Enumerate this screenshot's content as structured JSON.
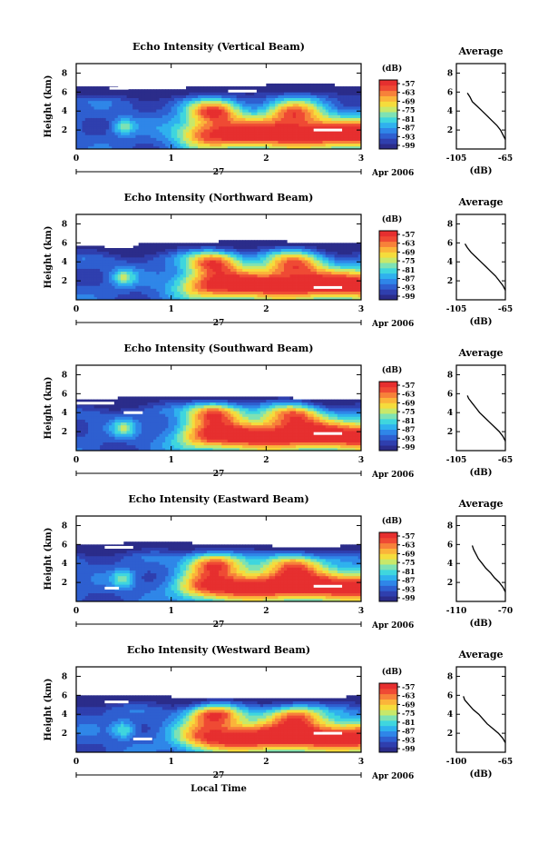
{
  "figure": {
    "xlabel": "Local Time",
    "date_day": "27",
    "date_month": "Apr 2006",
    "colorbar_unit": "(dB)",
    "avg_title": "Average",
    "avg_xlabel": "(dB)",
    "height_label": "Height (km)",
    "time_ticks": [
      "0",
      "1",
      "2",
      "3"
    ],
    "height_ticks": [
      "2",
      "4",
      "6",
      "8"
    ]
  },
  "colormap": [
    "#2b2c8a",
    "#2f3fae",
    "#2e5fd0",
    "#2f86e8",
    "#2fb1ee",
    "#3fd6de",
    "#7ee2b4",
    "#c8e86a",
    "#f5dc3c",
    "#fbb43a",
    "#f7813a",
    "#ef4a34",
    "#e62f2f"
  ],
  "chart_data": [
    {
      "type": "heatmap",
      "title": "Echo Intensity (Vertical Beam)",
      "xlabel": "Local Time",
      "ylabel": "Height (km)",
      "xlim": [
        0,
        3
      ],
      "ylim": [
        0,
        9
      ],
      "colorbar": {
        "label": "(dB)",
        "ticks": [
          "-57",
          "-63",
          "-69",
          "-75",
          "-81",
          "-87",
          "-93",
          "-99"
        ]
      },
      "average": {
        "title": "Average",
        "xlabel": "(dB)",
        "xlim": [
          -105,
          -65
        ],
        "xticks": [
          "-105",
          "-65"
        ],
        "profile": [
          [
            1.0,
            -65
          ],
          [
            1.5,
            -67
          ],
          [
            2.0,
            -69
          ],
          [
            2.5,
            -72
          ],
          [
            3.0,
            -76
          ],
          [
            3.5,
            -80
          ],
          [
            4.0,
            -84
          ],
          [
            4.5,
            -88
          ],
          [
            5.0,
            -92
          ],
          [
            5.5,
            -94
          ],
          [
            5.9,
            -96
          ]
        ]
      },
      "features": {
        "top_km": 6.6,
        "gap_rows": [
          [
            0.35,
            0.55,
            6.4
          ],
          [
            1.6,
            1.9,
            6.1
          ],
          [
            2.5,
            2.8,
            2.0
          ]
        ]
      }
    },
    {
      "type": "heatmap",
      "title": "Echo Intensity (Northward Beam)",
      "xlabel": "Local Time",
      "ylabel": "Height (km)",
      "xlim": [
        0,
        3
      ],
      "ylim": [
        0,
        9
      ],
      "colorbar": {
        "label": "(dB)",
        "ticks": [
          "-57",
          "-63",
          "-69",
          "-75",
          "-81",
          "-87",
          "-93",
          "-99"
        ]
      },
      "average": {
        "title": "Average",
        "xlabel": "(dB)",
        "xlim": [
          -105,
          -65
        ],
        "xticks": [
          "-105",
          "-65"
        ],
        "profile": [
          [
            1.0,
            -65
          ],
          [
            1.5,
            -67
          ],
          [
            2.0,
            -70
          ],
          [
            2.5,
            -73
          ],
          [
            3.0,
            -77
          ],
          [
            3.5,
            -81
          ],
          [
            4.0,
            -85
          ],
          [
            4.5,
            -89
          ],
          [
            5.0,
            -93
          ],
          [
            5.5,
            -96
          ],
          [
            5.9,
            -98
          ]
        ]
      },
      "features": {
        "top_km": 6.0,
        "gap_rows": [
          [
            0.3,
            0.6,
            5.6
          ],
          [
            2.5,
            2.8,
            1.3
          ]
        ]
      }
    },
    {
      "type": "heatmap",
      "title": "Echo Intensity (Southward Beam)",
      "xlabel": "Local Time",
      "ylabel": "Height (km)",
      "xlim": [
        0,
        3
      ],
      "ylim": [
        0,
        9
      ],
      "colorbar": {
        "label": "(dB)",
        "ticks": [
          "-57",
          "-63",
          "-69",
          "-75",
          "-81",
          "-87",
          "-93",
          "-99"
        ]
      },
      "average": {
        "title": "Average",
        "xlabel": "(dB)",
        "xlim": [
          -105,
          -65
        ],
        "xticks": [
          "-105",
          "-65"
        ],
        "profile": [
          [
            1.0,
            -65
          ],
          [
            1.5,
            -67
          ],
          [
            2.0,
            -70
          ],
          [
            2.5,
            -74
          ],
          [
            3.0,
            -78
          ],
          [
            3.5,
            -82
          ],
          [
            4.0,
            -86
          ],
          [
            4.5,
            -89
          ],
          [
            5.0,
            -92
          ],
          [
            5.5,
            -95
          ],
          [
            5.8,
            -96
          ]
        ]
      },
      "features": {
        "top_km": 5.6,
        "gap_rows": [
          [
            0.0,
            0.4,
            5.0
          ],
          [
            0.5,
            0.7,
            4.0
          ],
          [
            2.5,
            2.8,
            1.8
          ]
        ]
      }
    },
    {
      "type": "heatmap",
      "title": "Echo Intensity (Eastward Beam)",
      "xlabel": "Local Time",
      "ylabel": "Height (km)",
      "xlim": [
        0,
        3
      ],
      "ylim": [
        0,
        9
      ],
      "colorbar": {
        "label": "(dB)",
        "ticks": [
          "-57",
          "-63",
          "-69",
          "-75",
          "-81",
          "-87",
          "-93",
          "-99"
        ]
      },
      "average": {
        "title": "Average",
        "xlabel": "(dB)",
        "xlim": [
          -110,
          -70
        ],
        "xticks": [
          "-110",
          "-70"
        ],
        "profile": [
          [
            1.0,
            -70
          ],
          [
            1.5,
            -72
          ],
          [
            2.0,
            -75
          ],
          [
            2.5,
            -79
          ],
          [
            3.0,
            -82
          ],
          [
            3.5,
            -86
          ],
          [
            4.0,
            -89
          ],
          [
            4.5,
            -92
          ],
          [
            5.0,
            -94
          ],
          [
            5.5,
            -96
          ],
          [
            5.9,
            -97
          ]
        ]
      },
      "features": {
        "top_km": 6.0,
        "gap_rows": [
          [
            0.3,
            0.6,
            5.7
          ],
          [
            0.3,
            0.45,
            1.4
          ],
          [
            2.5,
            2.8,
            1.6
          ]
        ]
      }
    },
    {
      "type": "heatmap",
      "title": "Echo Intensity (Westward Beam)",
      "xlabel": "Local Time",
      "ylabel": "Height (km)",
      "xlim": [
        0,
        3
      ],
      "ylim": [
        0,
        9
      ],
      "colorbar": {
        "label": "(dB)",
        "ticks": [
          "-57",
          "-63",
          "-69",
          "-75",
          "-81",
          "-87",
          "-93",
          "-99"
        ]
      },
      "average": {
        "title": "Average",
        "xlabel": "(dB)",
        "xlim": [
          -100,
          -65
        ],
        "xticks": [
          "-100",
          "-65"
        ],
        "profile": [
          [
            1.0,
            -65
          ],
          [
            1.5,
            -67
          ],
          [
            2.0,
            -70
          ],
          [
            2.5,
            -74
          ],
          [
            3.0,
            -78
          ],
          [
            3.5,
            -81
          ],
          [
            4.0,
            -84
          ],
          [
            4.5,
            -88
          ],
          [
            5.0,
            -91
          ],
          [
            5.5,
            -94
          ],
          [
            5.9,
            -95
          ]
        ]
      },
      "features": {
        "top_km": 5.8,
        "gap_rows": [
          [
            0.3,
            0.55,
            5.3
          ],
          [
            0.6,
            0.8,
            1.4
          ],
          [
            2.5,
            2.8,
            2.0
          ]
        ]
      }
    }
  ]
}
